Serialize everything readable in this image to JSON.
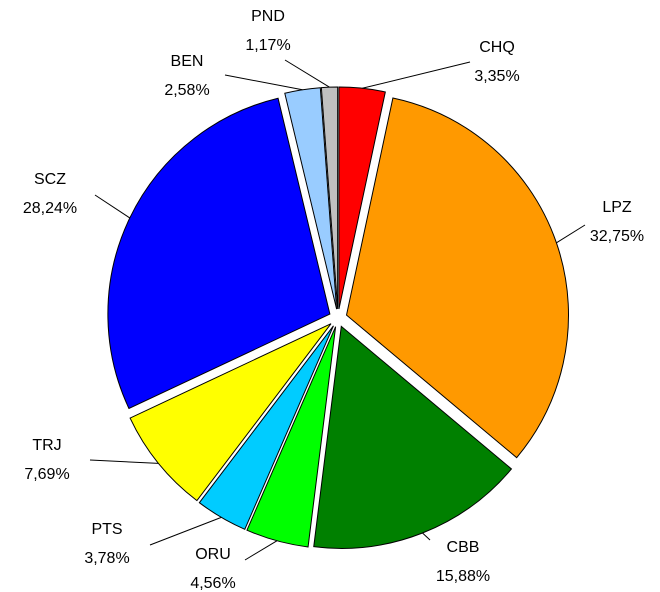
{
  "chart_data": {
    "type": "pie",
    "categories": [
      "CHQ",
      "LPZ",
      "CBB",
      "ORU",
      "PTS",
      "TRJ",
      "SCZ",
      "BEN",
      "PND"
    ],
    "values": [
      3.35,
      32.75,
      15.88,
      4.56,
      3.78,
      7.69,
      28.24,
      2.58,
      1.17
    ],
    "value_labels": [
      "3,35%",
      "32,75%",
      "15,88%",
      "4,56%",
      "3,78%",
      "7,69%",
      "28,24%",
      "2,58%",
      "1,17%"
    ],
    "colors": [
      "#ff0000",
      "#ff9900",
      "#008000",
      "#00ff00",
      "#00ccff",
      "#ffff00",
      "#0000ff",
      "#99ccff",
      "#c0c0c0"
    ]
  }
}
